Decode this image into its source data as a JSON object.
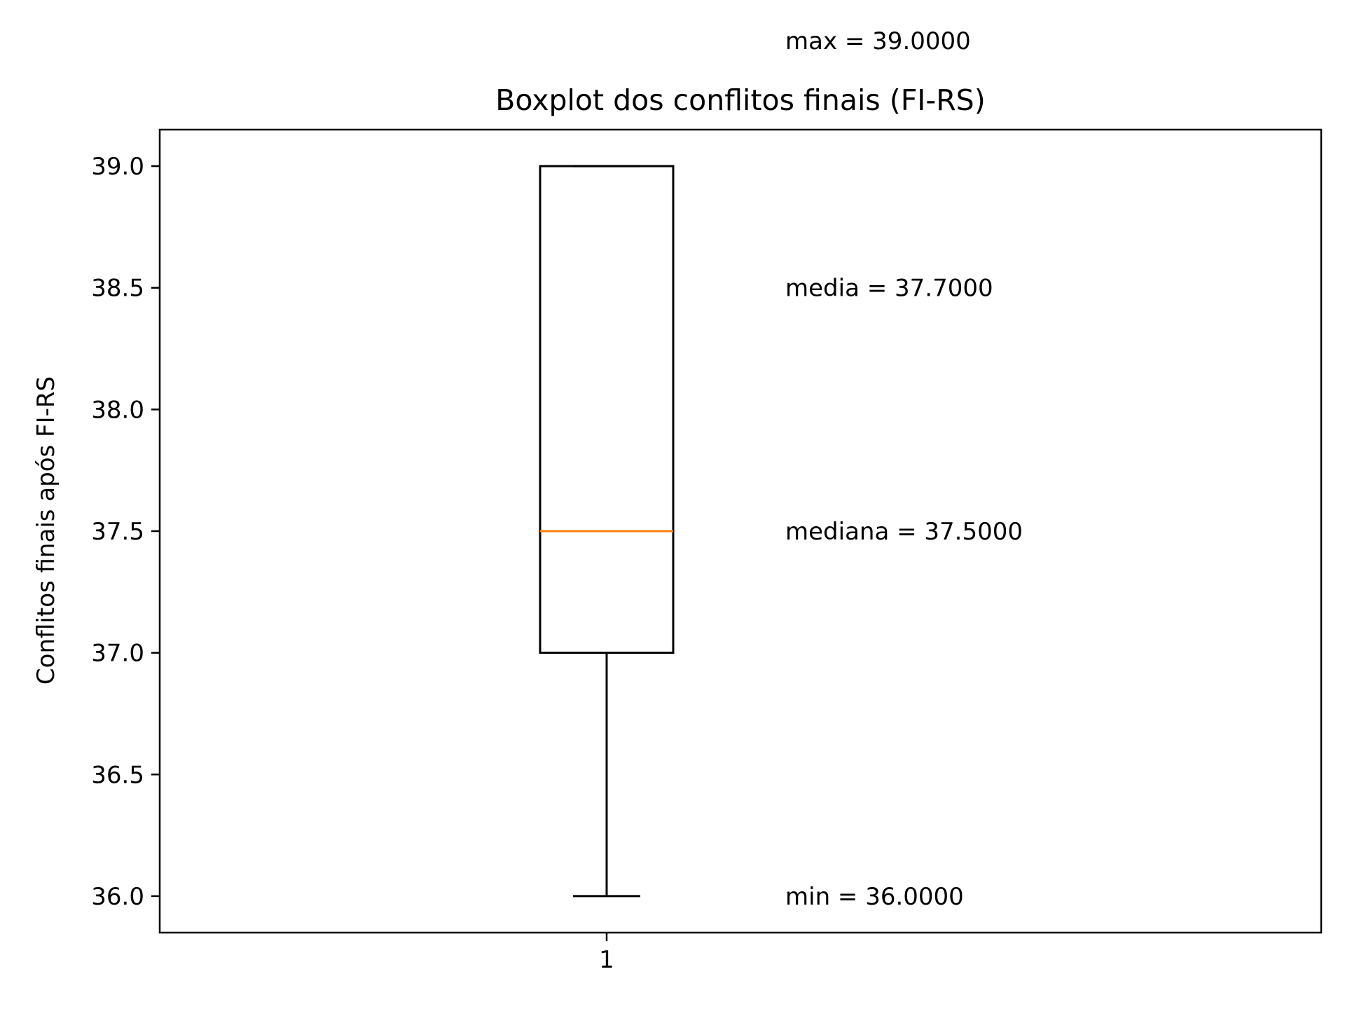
{
  "chart_data": {
    "type": "boxplot",
    "title": "Boxplot dos conflitos finais (FI-RS)",
    "xlabel": "",
    "ylabel": "Conflitos finais após FI-RS",
    "categories": [
      "1"
    ],
    "ylim": [
      35.85,
      39.15
    ],
    "yticks": [
      36.0,
      36.5,
      37.0,
      37.5,
      38.0,
      38.5,
      39.0
    ],
    "ytick_labels": [
      "36.0",
      "36.5",
      "37.0",
      "37.5",
      "38.0",
      "38.5",
      "39.0"
    ],
    "boxes": [
      {
        "category": "1",
        "whisker_low": 36.0,
        "q1": 37.0,
        "median": 37.5,
        "q3": 39.0,
        "whisker_high": 39.0
      }
    ],
    "annotations": [
      {
        "text": "max = 39.0000",
        "y": 39.0,
        "placement": "above-plot"
      },
      {
        "text": "media = 37.7000",
        "y": 38.5
      },
      {
        "text": "mediana = 37.5000",
        "y": 37.5
      },
      {
        "text": "min = 36.0000",
        "y": 36.0
      }
    ],
    "colors": {
      "box": "#000000",
      "median": "#ff7f0e",
      "axes": "#000000"
    },
    "grid": false,
    "legend": "none"
  }
}
